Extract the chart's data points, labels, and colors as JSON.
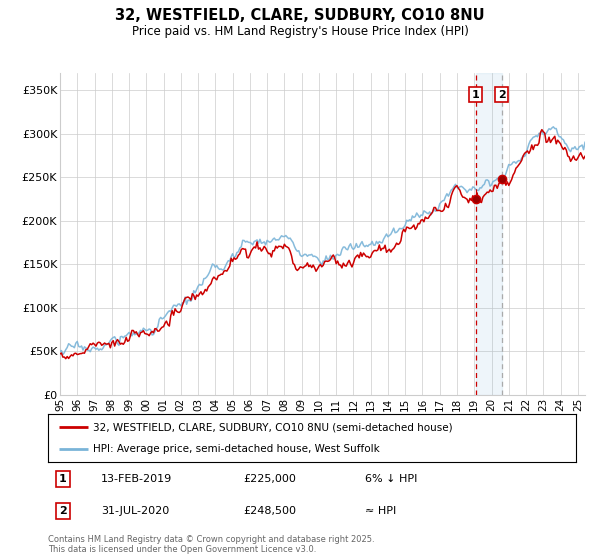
{
  "title_line1": "32, WESTFIELD, CLARE, SUDBURY, CO10 8NU",
  "title_line2": "Price paid vs. HM Land Registry's House Price Index (HPI)",
  "ylim": [
    0,
    370000
  ],
  "yticks": [
    0,
    50000,
    100000,
    150000,
    200000,
    250000,
    300000,
    350000
  ],
  "ytick_labels": [
    "£0",
    "£50K",
    "£100K",
    "£150K",
    "£200K",
    "£250K",
    "£300K",
    "£350K"
  ],
  "hpi_color": "#7ab4d8",
  "price_color": "#cc0000",
  "marker1_date_idx": 289,
  "marker1_price": 225000,
  "marker1_date_str": "13-FEB-2019",
  "marker1_note": "6% ↓ HPI",
  "marker2_date_idx": 307,
  "marker2_price": 248500,
  "marker2_date_str": "31-JUL-2020",
  "marker2_note": "≈ HPI",
  "legend_label_price": "32, WESTFIELD, CLARE, SUDBURY, CO10 8NU (semi-detached house)",
  "legend_label_hpi": "HPI: Average price, semi-detached house, West Suffolk",
  "footnote": "Contains HM Land Registry data © Crown copyright and database right 2025.\nThis data is licensed under the Open Government Licence v3.0.",
  "background_color": "#ffffff",
  "grid_color": "#cccccc",
  "start_year": 1995,
  "n_months": 366
}
